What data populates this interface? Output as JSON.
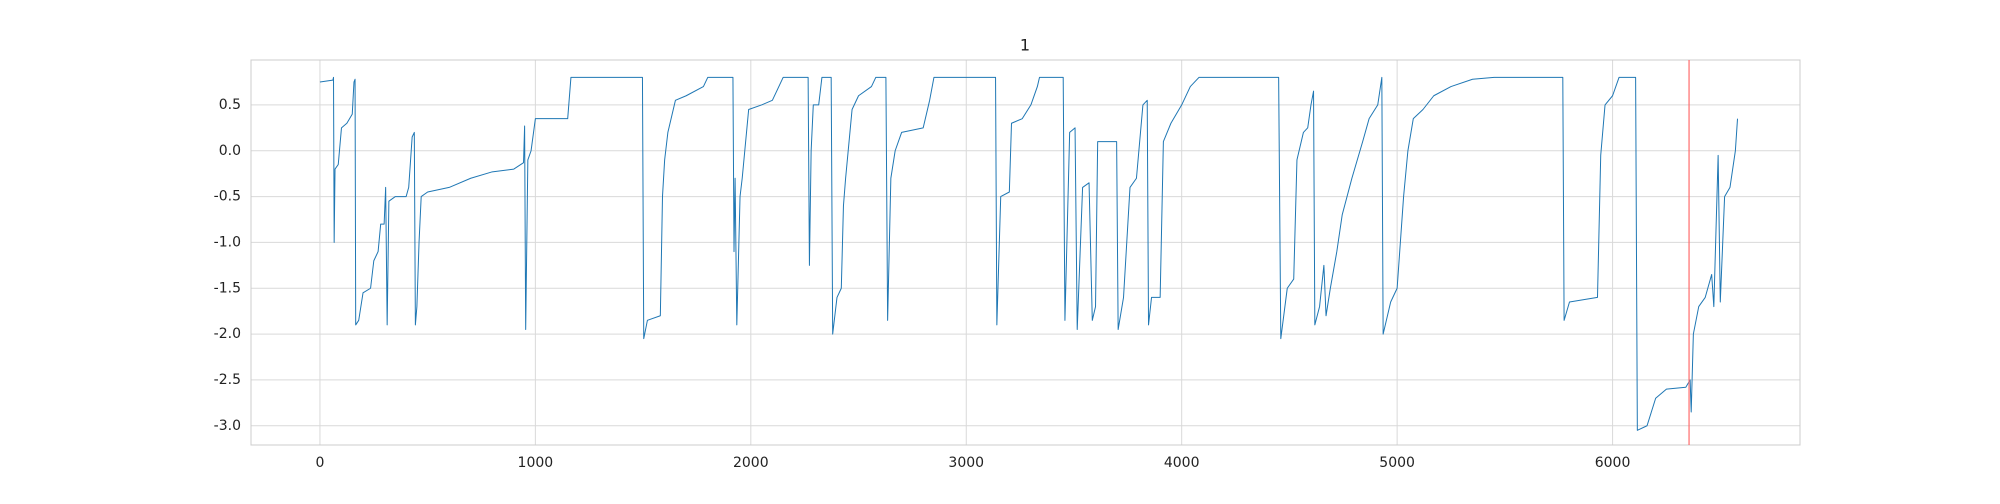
{
  "chart_data": {
    "type": "line",
    "title": "1",
    "x": [
      0,
      60,
      63,
      66,
      70,
      85,
      100,
      125,
      150,
      158,
      163,
      166,
      180,
      200,
      235,
      250,
      270,
      282,
      298,
      305,
      312,
      320,
      350,
      400,
      412,
      428,
      438,
      443,
      450,
      460,
      470,
      500,
      600,
      700,
      800,
      900,
      945,
      950,
      955,
      965,
      980,
      1000,
      1150,
      1165,
      1497,
      1503,
      1520,
      1580,
      1590,
      1600,
      1615,
      1650,
      1700,
      1780,
      1800,
      1917,
      1922,
      1927,
      1935,
      1950,
      1960,
      1990,
      2050,
      2100,
      2120,
      2150,
      2266,
      2272,
      2280,
      2290,
      2315,
      2330,
      2373,
      2380,
      2400,
      2420,
      2430,
      2440,
      2470,
      2500,
      2560,
      2580,
      2627,
      2635,
      2650,
      2670,
      2700,
      2800,
      2830,
      2850,
      3136,
      3142,
      3160,
      3200,
      3210,
      3260,
      3300,
      3330,
      3340,
      3450,
      3458,
      3480,
      3505,
      3515,
      3540,
      3570,
      3585,
      3600,
      3610,
      3698,
      3705,
      3730,
      3760,
      3790,
      3820,
      3840,
      3846,
      3860,
      3900,
      3915,
      3950,
      4000,
      4040,
      4080,
      4450,
      4460,
      4490,
      4520,
      4535,
      4565,
      4585,
      4600,
      4612,
      4618,
      4640,
      4660,
      4670,
      4690,
      4720,
      4745,
      4790,
      4840,
      4870,
      4910,
      4929,
      4935,
      4970,
      5000,
      5030,
      5050,
      5075,
      5120,
      5170,
      5250,
      5350,
      5450,
      5769,
      5775,
      5800,
      5930,
      5945,
      5965,
      6000,
      6030,
      6107,
      6115,
      6160,
      6200,
      6250,
      6340,
      6360,
      6365,
      6375,
      6400,
      6430,
      6460,
      6470,
      6490,
      6500,
      6520,
      6545,
      6570,
      6580
    ],
    "series": [
      {
        "color": "#1f77b4",
        "values": [
          0.75,
          0.77,
          0.8,
          -1.0,
          -0.2,
          -0.15,
          0.25,
          0.3,
          0.4,
          0.75,
          0.78,
          -1.9,
          -1.85,
          -1.55,
          -1.5,
          -1.2,
          -1.1,
          -0.8,
          -0.8,
          -0.4,
          -1.9,
          -0.55,
          -0.5,
          -0.5,
          -0.4,
          0.15,
          0.2,
          -1.9,
          -1.7,
          -1.0,
          -0.5,
          -0.45,
          -0.4,
          -0.3,
          -0.23,
          -0.2,
          -0.13,
          0.27,
          -1.95,
          -0.1,
          0.0,
          0.35,
          0.35,
          0.8,
          0.8,
          -2.05,
          -1.85,
          -1.8,
          -0.5,
          -0.1,
          0.2,
          0.55,
          0.6,
          0.7,
          0.8,
          0.8,
          -1.1,
          -0.3,
          -1.9,
          -0.5,
          -0.3,
          0.45,
          0.5,
          0.55,
          0.65,
          0.8,
          0.8,
          -1.25,
          0.0,
          0.5,
          0.5,
          0.8,
          0.8,
          -2.0,
          -1.6,
          -1.5,
          -0.6,
          -0.3,
          0.45,
          0.6,
          0.7,
          0.8,
          0.8,
          -1.85,
          -0.3,
          0.0,
          0.2,
          0.25,
          0.55,
          0.8,
          0.8,
          -1.9,
          -0.5,
          -0.45,
          0.3,
          0.35,
          0.5,
          0.7,
          0.8,
          0.8,
          -1.85,
          0.2,
          0.25,
          -1.95,
          -0.4,
          -0.35,
          -1.85,
          -1.7,
          0.1,
          0.1,
          -1.95,
          -1.6,
          -0.4,
          -0.3,
          0.5,
          0.55,
          -1.9,
          -1.6,
          -1.6,
          0.1,
          0.3,
          0.5,
          0.7,
          0.8,
          0.8,
          -2.05,
          -1.5,
          -1.4,
          -0.1,
          0.2,
          0.25,
          0.5,
          0.65,
          -1.9,
          -1.7,
          -1.25,
          -1.8,
          -1.5,
          -1.1,
          -0.7,
          -0.3,
          0.1,
          0.35,
          0.5,
          0.8,
          -2.0,
          -1.65,
          -1.5,
          -0.5,
          0.0,
          0.35,
          0.45,
          0.6,
          0.7,
          0.78,
          0.8,
          0.8,
          -1.85,
          -1.65,
          -1.6,
          -0.05,
          0.5,
          0.6,
          0.8,
          0.8,
          -3.05,
          -3.0,
          -2.7,
          -2.6,
          -2.58,
          -2.5,
          -2.85,
          -2.0,
          -1.7,
          -1.6,
          -1.35,
          -1.7,
          -0.05,
          -1.65,
          -0.5,
          -0.4,
          0.0,
          0.35
        ]
      }
    ],
    "xlim": [
      -320,
      6870
    ],
    "ylim": [
      -3.21,
      0.99
    ],
    "xticks": [
      0,
      1000,
      2000,
      3000,
      4000,
      5000,
      6000
    ],
    "yticks": [
      {
        "value": -3,
        "label": "-3.0"
      },
      -2.5,
      {
        "value": -2,
        "label": "-2.0"
      },
      -1.5,
      {
        "value": -1,
        "label": "-1.0"
      },
      -0.5,
      {
        "value": 0,
        "label": "0.0"
      },
      0.5
    ],
    "grid": true,
    "vline": {
      "x": 6355,
      "color": "#ff6b6b"
    }
  }
}
